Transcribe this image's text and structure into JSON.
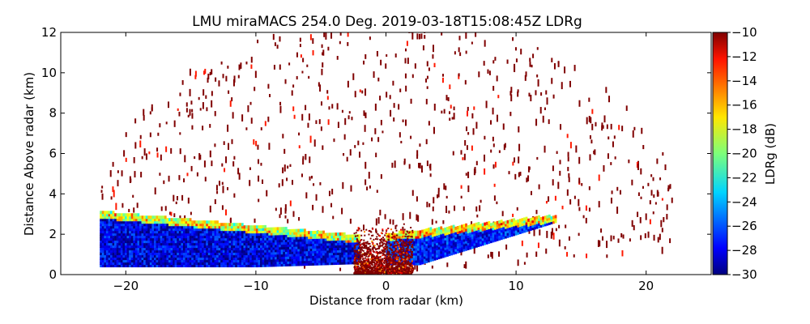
{
  "chart_data": {
    "type": "heatmap",
    "title": "LMU miraMACS 254.0 Deg. 2019-03-18T15:08:45Z  LDRg",
    "xlabel": "Distance from radar (km)",
    "ylabel": "Distance Above radar  (km)",
    "xlim": [
      -25,
      25
    ],
    "ylim": [
      0,
      12
    ],
    "x_ticks": [
      -20,
      -10,
      0,
      10,
      20
    ],
    "x_tick_labels": [
      "−20",
      "−10",
      "0",
      "10",
      "20"
    ],
    "y_ticks": [
      0,
      2,
      4,
      6,
      8,
      10,
      12
    ],
    "y_tick_labels": [
      "0",
      "2",
      "4",
      "6",
      "8",
      "10",
      "12"
    ],
    "colorbar": {
      "label": "LDRg (dB)",
      "range": [
        -30,
        -10
      ],
      "colormap": "jet",
      "ticks": [
        -10,
        -12,
        -14,
        -16,
        -18,
        -20,
        -22,
        -24,
        -26,
        -28,
        -30
      ],
      "tick_labels": [
        "−10",
        "−12",
        "−14",
        "−16",
        "−18",
        "−20",
        "−22",
        "−24",
        "−26",
        "−28",
        "−30"
      ]
    },
    "regions": [
      {
        "name": "cloud-layer-left",
        "x_range": [
          -22,
          -2
        ],
        "height_range": [
          0.4,
          3.1
        ],
        "ldr_typical": -28
      },
      {
        "name": "cloud-layer-right",
        "x_range": [
          0,
          13
        ],
        "height_range": [
          0.5,
          3.0
        ],
        "ldr_typical": -27
      },
      {
        "name": "ground-clutter",
        "x_range": [
          -2.5,
          2
        ],
        "height_range": [
          0,
          2.5
        ],
        "ldr_typical": -10
      },
      {
        "name": "sparse-noise-rays",
        "x_range": [
          -22,
          22
        ],
        "height_range": [
          0,
          12
        ],
        "ldr_typical": -10
      }
    ]
  }
}
